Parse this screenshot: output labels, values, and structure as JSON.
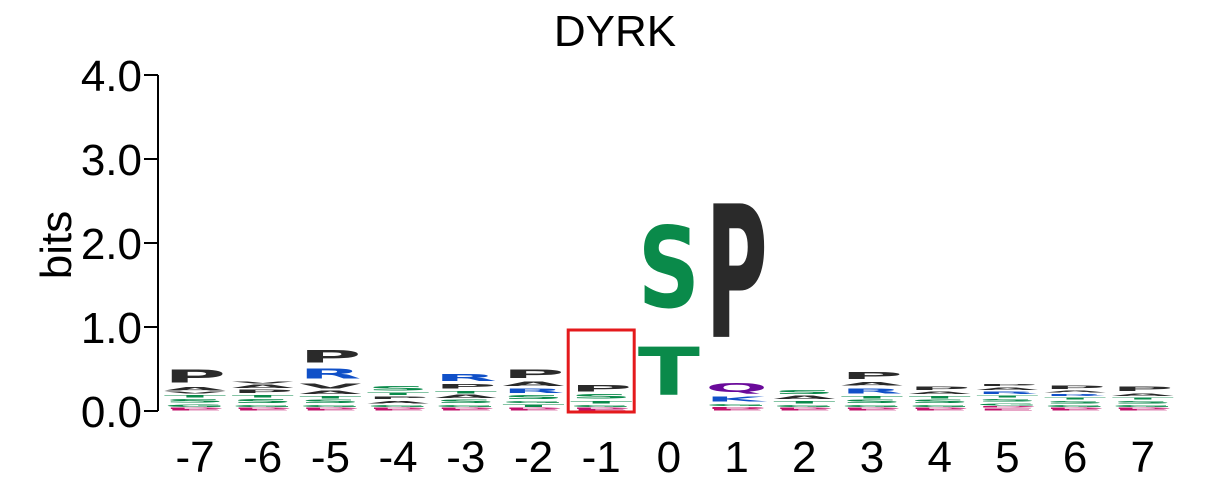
{
  "chart_data": {
    "type": "sequence-logo",
    "title": "DYRK",
    "ylabel": "bits",
    "ylim": [
      0,
      4
    ],
    "y_ticks": [
      "0.0",
      "1.0",
      "2.0",
      "3.0",
      "4.0"
    ],
    "y_tick_values": [
      0,
      1,
      2,
      3,
      4
    ],
    "positions": [
      "-7",
      "-6",
      "-5",
      "-4",
      "-3",
      "-2",
      "-1",
      "0",
      "1",
      "2",
      "3",
      "4",
      "5",
      "6",
      "7"
    ],
    "highlight_position": "-1",
    "highlight_color": "#e41a1c",
    "residue_colors": {
      "P": "#2a2a2a",
      "A": "#2a2a2a",
      "V": "#2a2a2a",
      "L": "#2a2a2a",
      "I": "#2a2a2a",
      "M": "#2a2a2a",
      "F": "#2a2a2a",
      "W": "#2a2a2a",
      "S": "#0a8a4a",
      "T": "#0a8a4a",
      "G": "#0a8a4a",
      "C": "#0a8a4a",
      "Y": "#0a8a4a",
      "R": "#1050c8",
      "K": "#1050c8",
      "H": "#1050c8",
      "Q": "#6a0a9a",
      "N": "#6a0a9a",
      "D": "#c0106a",
      "E": "#c0106a"
    },
    "stacks": [
      [
        [
          "E",
          0.02
        ],
        [
          "D",
          0.02
        ],
        [
          "G",
          0.05
        ],
        [
          "S",
          0.06
        ],
        [
          "T",
          0.05
        ],
        [
          "V",
          0.03
        ],
        [
          "A",
          0.06
        ],
        [
          "P",
          0.25
        ]
      ],
      [
        [
          "E",
          0.02
        ],
        [
          "D",
          0.02
        ],
        [
          "G",
          0.04
        ],
        [
          "S",
          0.07
        ],
        [
          "T",
          0.05
        ],
        [
          "P",
          0.06
        ],
        [
          "A",
          0.06
        ],
        [
          "V",
          0.03
        ]
      ],
      [
        [
          "E",
          0.02
        ],
        [
          "D",
          0.02
        ],
        [
          "G",
          0.04
        ],
        [
          "S",
          0.06
        ],
        [
          "T",
          0.05
        ],
        [
          "A",
          0.06
        ],
        [
          "V",
          0.1
        ],
        [
          "R",
          0.18
        ],
        [
          "P",
          0.23
        ]
      ],
      [
        [
          "E",
          0.02
        ],
        [
          "D",
          0.02
        ],
        [
          "G",
          0.04
        ],
        [
          "A",
          0.05
        ],
        [
          "P",
          0.05
        ],
        [
          "T",
          0.05
        ],
        [
          "S",
          0.08
        ]
      ],
      [
        [
          "E",
          0.02
        ],
        [
          "D",
          0.02
        ],
        [
          "G",
          0.04
        ],
        [
          "S",
          0.06
        ],
        [
          "A",
          0.06
        ],
        [
          "T",
          0.05
        ],
        [
          "P",
          0.08
        ],
        [
          "R",
          0.14
        ]
      ],
      [
        [
          "E",
          0.02
        ],
        [
          "D",
          0.02
        ],
        [
          "T",
          0.05
        ],
        [
          "G",
          0.04
        ],
        [
          "S",
          0.07
        ],
        [
          "R",
          0.08
        ],
        [
          "A",
          0.08
        ],
        [
          "P",
          0.16
        ]
      ],
      [
        [
          "E",
          0.02
        ],
        [
          "D",
          0.02
        ],
        [
          "G",
          0.04
        ],
        [
          "T",
          0.05
        ],
        [
          "S",
          0.08
        ],
        [
          "P",
          0.12
        ]
      ],
      [
        [
          "T",
          0.92
        ],
        [
          "S",
          1.55
        ]
      ],
      [
        [
          "E",
          0.02
        ],
        [
          "D",
          0.03
        ],
        [
          "G",
          0.04
        ],
        [
          "K",
          0.1
        ],
        [
          "Q",
          0.17
        ],
        [
          "P",
          2.55
        ]
      ],
      [
        [
          "E",
          0.02
        ],
        [
          "D",
          0.02
        ],
        [
          "G",
          0.04
        ],
        [
          "T",
          0.05
        ],
        [
          "A",
          0.06
        ],
        [
          "S",
          0.07
        ]
      ],
      [
        [
          "E",
          0.02
        ],
        [
          "D",
          0.02
        ],
        [
          "G",
          0.04
        ],
        [
          "S",
          0.06
        ],
        [
          "T",
          0.05
        ],
        [
          "R",
          0.1
        ],
        [
          "A",
          0.06
        ],
        [
          "P",
          0.14
        ]
      ],
      [
        [
          "E",
          0.02
        ],
        [
          "D",
          0.02
        ],
        [
          "G",
          0.04
        ],
        [
          "S",
          0.06
        ],
        [
          "T",
          0.05
        ],
        [
          "A",
          0.05
        ],
        [
          "P",
          0.06
        ]
      ],
      [
        [
          "E",
          0.04
        ],
        [
          "D",
          0.02
        ],
        [
          "G",
          0.04
        ],
        [
          "S",
          0.05
        ],
        [
          "T",
          0.04
        ],
        [
          "R",
          0.05
        ],
        [
          "A",
          0.05
        ],
        [
          "P",
          0.04
        ]
      ],
      [
        [
          "E",
          0.02
        ],
        [
          "D",
          0.02
        ],
        [
          "G",
          0.04
        ],
        [
          "S",
          0.05
        ],
        [
          "T",
          0.04
        ],
        [
          "R",
          0.04
        ],
        [
          "A",
          0.04
        ],
        [
          "P",
          0.06
        ]
      ],
      [
        [
          "E",
          0.02
        ],
        [
          "D",
          0.02
        ],
        [
          "G",
          0.04
        ],
        [
          "S",
          0.05
        ],
        [
          "T",
          0.04
        ],
        [
          "A",
          0.05
        ],
        [
          "P",
          0.08
        ]
      ]
    ]
  }
}
